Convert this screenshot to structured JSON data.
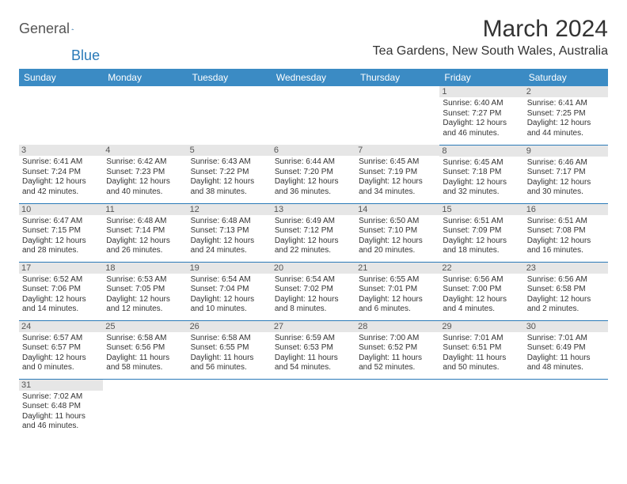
{
  "logo": {
    "general": "General",
    "blue": "Blue"
  },
  "header": {
    "month": "March 2024",
    "location": "Tea Gardens, New South Wales, Australia"
  },
  "colors": {
    "header_bg": "#3b8bc4",
    "header_text": "#ffffff",
    "divider": "#2a7ab8",
    "daynum_bg": "#e6e6e6",
    "text": "#333333",
    "background": "#ffffff"
  },
  "typography": {
    "month_fontsize": 30,
    "location_fontsize": 16,
    "dayheader_fontsize": 12,
    "daynum_fontsize": 11,
    "info_fontsize": 10,
    "font_family": "Arial"
  },
  "weekdays": [
    "Sunday",
    "Monday",
    "Tuesday",
    "Wednesday",
    "Thursday",
    "Friday",
    "Saturday"
  ],
  "weeks": [
    [
      null,
      null,
      null,
      null,
      null,
      {
        "n": "1",
        "sr": "Sunrise: 6:40 AM",
        "ss": "Sunset: 7:27 PM",
        "d1": "Daylight: 12 hours",
        "d2": "and 46 minutes."
      },
      {
        "n": "2",
        "sr": "Sunrise: 6:41 AM",
        "ss": "Sunset: 7:25 PM",
        "d1": "Daylight: 12 hours",
        "d2": "and 44 minutes."
      }
    ],
    [
      {
        "n": "3",
        "sr": "Sunrise: 6:41 AM",
        "ss": "Sunset: 7:24 PM",
        "d1": "Daylight: 12 hours",
        "d2": "and 42 minutes."
      },
      {
        "n": "4",
        "sr": "Sunrise: 6:42 AM",
        "ss": "Sunset: 7:23 PM",
        "d1": "Daylight: 12 hours",
        "d2": "and 40 minutes."
      },
      {
        "n": "5",
        "sr": "Sunrise: 6:43 AM",
        "ss": "Sunset: 7:22 PM",
        "d1": "Daylight: 12 hours",
        "d2": "and 38 minutes."
      },
      {
        "n": "6",
        "sr": "Sunrise: 6:44 AM",
        "ss": "Sunset: 7:20 PM",
        "d1": "Daylight: 12 hours",
        "d2": "and 36 minutes."
      },
      {
        "n": "7",
        "sr": "Sunrise: 6:45 AM",
        "ss": "Sunset: 7:19 PM",
        "d1": "Daylight: 12 hours",
        "d2": "and 34 minutes."
      },
      {
        "n": "8",
        "sr": "Sunrise: 6:45 AM",
        "ss": "Sunset: 7:18 PM",
        "d1": "Daylight: 12 hours",
        "d2": "and 32 minutes."
      },
      {
        "n": "9",
        "sr": "Sunrise: 6:46 AM",
        "ss": "Sunset: 7:17 PM",
        "d1": "Daylight: 12 hours",
        "d2": "and 30 minutes."
      }
    ],
    [
      {
        "n": "10",
        "sr": "Sunrise: 6:47 AM",
        "ss": "Sunset: 7:15 PM",
        "d1": "Daylight: 12 hours",
        "d2": "and 28 minutes."
      },
      {
        "n": "11",
        "sr": "Sunrise: 6:48 AM",
        "ss": "Sunset: 7:14 PM",
        "d1": "Daylight: 12 hours",
        "d2": "and 26 minutes."
      },
      {
        "n": "12",
        "sr": "Sunrise: 6:48 AM",
        "ss": "Sunset: 7:13 PM",
        "d1": "Daylight: 12 hours",
        "d2": "and 24 minutes."
      },
      {
        "n": "13",
        "sr": "Sunrise: 6:49 AM",
        "ss": "Sunset: 7:12 PM",
        "d1": "Daylight: 12 hours",
        "d2": "and 22 minutes."
      },
      {
        "n": "14",
        "sr": "Sunrise: 6:50 AM",
        "ss": "Sunset: 7:10 PM",
        "d1": "Daylight: 12 hours",
        "d2": "and 20 minutes."
      },
      {
        "n": "15",
        "sr": "Sunrise: 6:51 AM",
        "ss": "Sunset: 7:09 PM",
        "d1": "Daylight: 12 hours",
        "d2": "and 18 minutes."
      },
      {
        "n": "16",
        "sr": "Sunrise: 6:51 AM",
        "ss": "Sunset: 7:08 PM",
        "d1": "Daylight: 12 hours",
        "d2": "and 16 minutes."
      }
    ],
    [
      {
        "n": "17",
        "sr": "Sunrise: 6:52 AM",
        "ss": "Sunset: 7:06 PM",
        "d1": "Daylight: 12 hours",
        "d2": "and 14 minutes."
      },
      {
        "n": "18",
        "sr": "Sunrise: 6:53 AM",
        "ss": "Sunset: 7:05 PM",
        "d1": "Daylight: 12 hours",
        "d2": "and 12 minutes."
      },
      {
        "n": "19",
        "sr": "Sunrise: 6:54 AM",
        "ss": "Sunset: 7:04 PM",
        "d1": "Daylight: 12 hours",
        "d2": "and 10 minutes."
      },
      {
        "n": "20",
        "sr": "Sunrise: 6:54 AM",
        "ss": "Sunset: 7:02 PM",
        "d1": "Daylight: 12 hours",
        "d2": "and 8 minutes."
      },
      {
        "n": "21",
        "sr": "Sunrise: 6:55 AM",
        "ss": "Sunset: 7:01 PM",
        "d1": "Daylight: 12 hours",
        "d2": "and 6 minutes."
      },
      {
        "n": "22",
        "sr": "Sunrise: 6:56 AM",
        "ss": "Sunset: 7:00 PM",
        "d1": "Daylight: 12 hours",
        "d2": "and 4 minutes."
      },
      {
        "n": "23",
        "sr": "Sunrise: 6:56 AM",
        "ss": "Sunset: 6:58 PM",
        "d1": "Daylight: 12 hours",
        "d2": "and 2 minutes."
      }
    ],
    [
      {
        "n": "24",
        "sr": "Sunrise: 6:57 AM",
        "ss": "Sunset: 6:57 PM",
        "d1": "Daylight: 12 hours",
        "d2": "and 0 minutes."
      },
      {
        "n": "25",
        "sr": "Sunrise: 6:58 AM",
        "ss": "Sunset: 6:56 PM",
        "d1": "Daylight: 11 hours",
        "d2": "and 58 minutes."
      },
      {
        "n": "26",
        "sr": "Sunrise: 6:58 AM",
        "ss": "Sunset: 6:55 PM",
        "d1": "Daylight: 11 hours",
        "d2": "and 56 minutes."
      },
      {
        "n": "27",
        "sr": "Sunrise: 6:59 AM",
        "ss": "Sunset: 6:53 PM",
        "d1": "Daylight: 11 hours",
        "d2": "and 54 minutes."
      },
      {
        "n": "28",
        "sr": "Sunrise: 7:00 AM",
        "ss": "Sunset: 6:52 PM",
        "d1": "Daylight: 11 hours",
        "d2": "and 52 minutes."
      },
      {
        "n": "29",
        "sr": "Sunrise: 7:01 AM",
        "ss": "Sunset: 6:51 PM",
        "d1": "Daylight: 11 hours",
        "d2": "and 50 minutes."
      },
      {
        "n": "30",
        "sr": "Sunrise: 7:01 AM",
        "ss": "Sunset: 6:49 PM",
        "d1": "Daylight: 11 hours",
        "d2": "and 48 minutes."
      }
    ],
    [
      {
        "n": "31",
        "sr": "Sunrise: 7:02 AM",
        "ss": "Sunset: 6:48 PM",
        "d1": "Daylight: 11 hours",
        "d2": "and 46 minutes."
      },
      null,
      null,
      null,
      null,
      null,
      null
    ]
  ]
}
